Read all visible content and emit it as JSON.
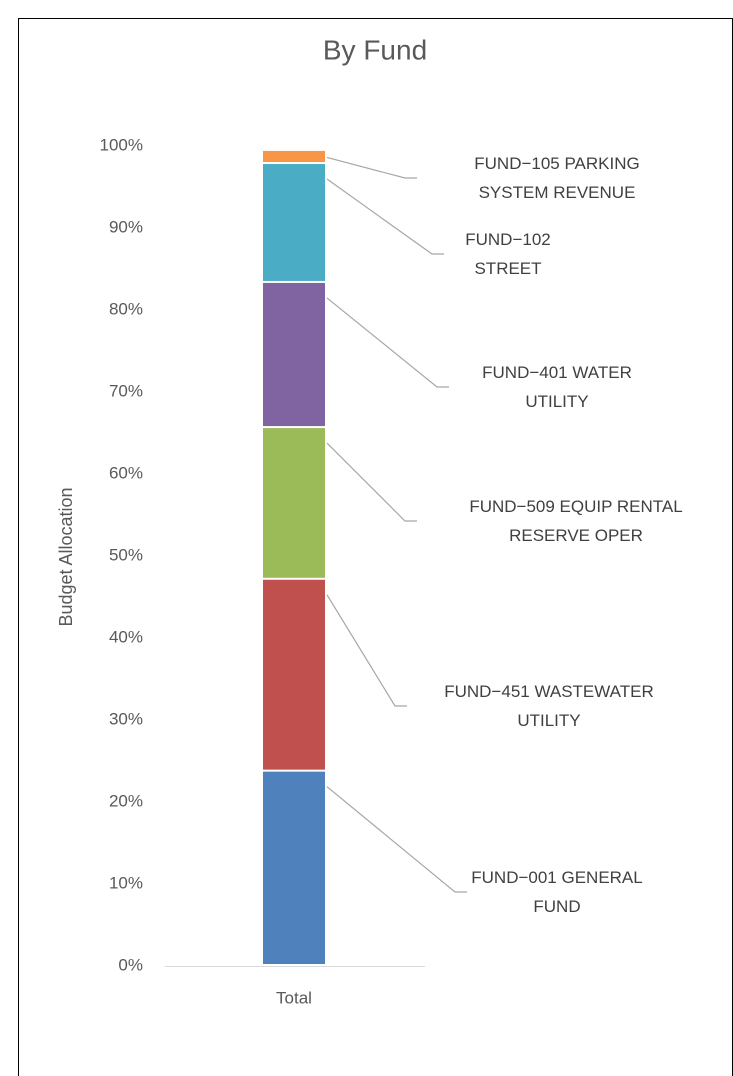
{
  "chart_data": {
    "type": "stacked_bar",
    "title": "By Fund",
    "y_label": "Budget Allocation",
    "categories": [
      "Total"
    ],
    "series": [
      {
        "name": "FUND−001 GENERAL FUND",
        "color": "#4f81bd",
        "values": [
          23.7
        ]
      },
      {
        "name": "FUND−451 WASTEWATER UTILITY",
        "color": "#c0504d",
        "values": [
          23.4
        ]
      },
      {
        "name": "FUND−509 EQUIP RENTAL RESERVE OPER",
        "color": "#9bbb59",
        "values": [
          18.5
        ]
      },
      {
        "name": "FUND−401 WATER UTILITY",
        "color": "#8064a2",
        "values": [
          17.7
        ]
      },
      {
        "name": "FUND−102 STREET",
        "color": "#4bacc6",
        "values": [
          14.5
        ]
      },
      {
        "name": "FUND−105 PARKING SYSTEM REVENUE",
        "color": "#f79646",
        "values": [
          1.6
        ]
      }
    ],
    "ylim": [
      0,
      100
    ],
    "yticks": [
      {
        "value": 0,
        "label": "0%"
      },
      {
        "value": 10,
        "label": "10%"
      },
      {
        "value": 20,
        "label": "20%"
      },
      {
        "value": 30,
        "label": "30%"
      },
      {
        "value": 40,
        "label": "40%"
      },
      {
        "value": 50,
        "label": "50%"
      },
      {
        "value": 60,
        "label": "60%"
      },
      {
        "value": 70,
        "label": "70%"
      },
      {
        "value": 80,
        "label": "80%"
      },
      {
        "value": 90,
        "label": "90%"
      },
      {
        "value": 100,
        "label": "100%"
      }
    ]
  }
}
